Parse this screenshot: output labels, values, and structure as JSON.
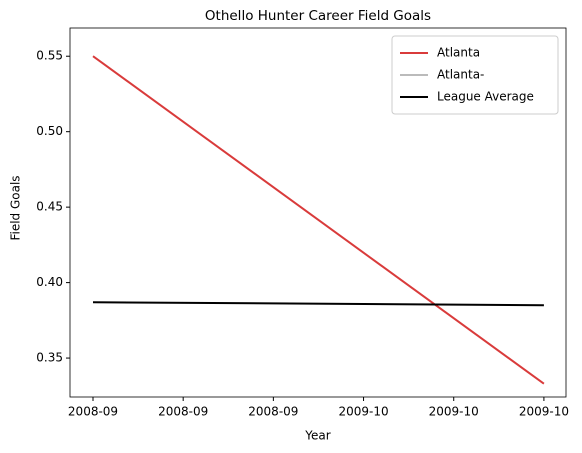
{
  "chart_data": {
    "type": "line",
    "title": "Othello Hunter Career Field Goals",
    "xlabel": "Year",
    "ylabel": "Field Goals",
    "categories": [
      "2008-09",
      "2009-10"
    ],
    "series": [
      {
        "name": "Atlanta",
        "color": "#d93b3b",
        "values": [
          0.55,
          0.333
        ]
      },
      {
        "name": "Atlanta-",
        "color": "#bbbbbb",
        "values": [
          null,
          null
        ]
      },
      {
        "name": "League Average",
        "color": "#000000",
        "values": [
          0.387,
          0.385
        ]
      }
    ],
    "xlim": [
      -0.051,
      1.049
    ],
    "xticks": [
      {
        "value": 0,
        "label": "2008-09"
      },
      {
        "value": 0.2,
        "label": "2008-09"
      },
      {
        "value": 0.4,
        "label": "2008-09"
      },
      {
        "value": 0.6,
        "label": "2009-10"
      },
      {
        "value": 0.8,
        "label": "2009-10"
      },
      {
        "value": 1,
        "label": "2009-10"
      }
    ],
    "ylim": [
      0.3242,
      0.5687
    ],
    "yticks": [
      0.35,
      {
        "value": 0.4,
        "label": "0.40"
      },
      0.45,
      {
        "value": 0.5,
        "label": "0.50"
      },
      0.55
    ],
    "legend": "upper right",
    "grid": false
  }
}
